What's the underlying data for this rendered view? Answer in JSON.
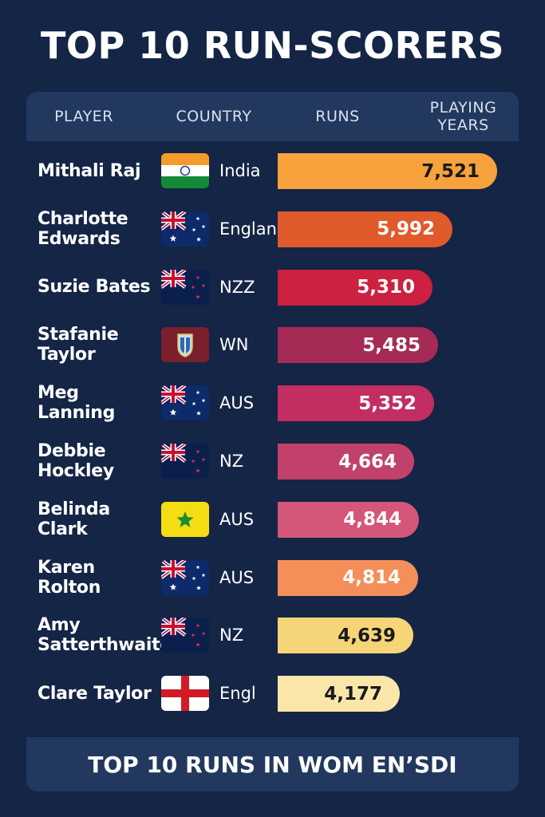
{
  "title": "TOP 10 RUN-SCORERS",
  "footer": "TOP 10 RUNS IN WOM EN’SDI",
  "chart_data": {
    "type": "bar",
    "orientation": "horizontal",
    "columns": [
      "PLAYER",
      "COUNTRY",
      "RUNS",
      "PLAYING YEARS"
    ],
    "categories": [
      "Mithali Raj",
      "Charlotte Edwards",
      "Suzie Bates",
      "Stafanie Taylor",
      "Meg Lanning",
      "Debbie Hockley",
      "Belinda Clark",
      "Karen Rolton",
      "Amy Satterthwaite",
      "Clare Taylor"
    ],
    "rows": [
      {
        "player": "Mithali Raj",
        "country": "India",
        "flag": "india-flag",
        "runs": 7521,
        "runs_label": "7,521",
        "color": "#f7a23c",
        "label_color": "#1a1a1a"
      },
      {
        "player": "Charlotte Edwards",
        "country": "England",
        "flag": "australia-flag",
        "runs": 5992,
        "runs_label": "5,992",
        "color": "#e05a2c",
        "label_color": "#ffffff"
      },
      {
        "player": "Suzie Bates",
        "country": "NZZ",
        "flag": "new-zealand-flag",
        "runs": 5310,
        "runs_label": "5,310",
        "color": "#cc2140",
        "label_color": "#ffffff"
      },
      {
        "player": "Stafanie Taylor",
        "country": "WN",
        "flag": "west-indies-flag",
        "runs": 5485,
        "runs_label": "5,485",
        "color": "#a52a55",
        "label_color": "#ffffff"
      },
      {
        "player": "Meg Lanning",
        "country": "AUS",
        "flag": "australia-flag",
        "runs": 5352,
        "runs_label": "5,352",
        "color": "#c22d62",
        "label_color": "#ffffff"
      },
      {
        "player": "Debbie Hockley",
        "country": "NZ",
        "flag": "new-zealand-flag",
        "runs": 4664,
        "runs_label": "4,664",
        "color": "#c2416b",
        "label_color": "#ffffff"
      },
      {
        "player": "Belinda Clark",
        "country": "AUS",
        "flag": "australia-green-flag",
        "runs": 4844,
        "runs_label": "4,844",
        "color": "#d4577a",
        "label_color": "#ffffff"
      },
      {
        "player": "Karen Rolton",
        "country": "AUS",
        "flag": "australia-flag",
        "runs": 4814,
        "runs_label": "4,814",
        "color": "#f48f5a",
        "label_color": "#ffffff"
      },
      {
        "player": "Amy Satterthwaite",
        "country": "NZ",
        "flag": "new-zealand-flag",
        "runs": 4639,
        "runs_label": "4,639",
        "color": "#f6d579",
        "label_color": "#1a1a1a"
      },
      {
        "player": "Clare Taylor",
        "country": "Engl",
        "flag": "england-flag",
        "runs": 4177,
        "runs_label": "4,177",
        "color": "#fbe6aa",
        "label_color": "#1a1a1a"
      }
    ]
  }
}
